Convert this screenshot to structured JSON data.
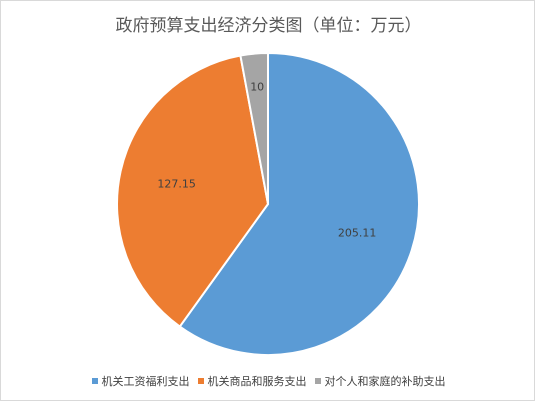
{
  "chart_data": {
    "type": "pie",
    "title": "政府预算支出经济分类图（单位：万元）",
    "categories": [
      "机关工资福利支出",
      "机关商品和服务支出",
      "对个人和家庭的补助支出"
    ],
    "values": [
      205.11,
      127.15,
      10
    ],
    "value_labels": [
      "205.11",
      "127.15",
      "10"
    ],
    "colors": [
      "#5b9bd5",
      "#ed7d31",
      "#a5a5a5"
    ],
    "legend_position": "bottom",
    "start_angle_deg": 0,
    "direction": "clockwise"
  }
}
